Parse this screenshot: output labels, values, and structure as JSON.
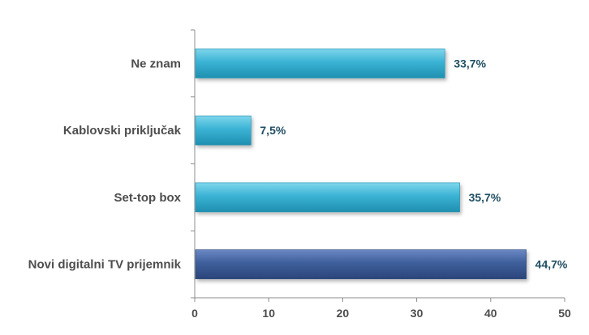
{
  "chart_data": {
    "type": "bar",
    "orientation": "horizontal",
    "categories": [
      "Ne znam",
      "Kablovski priključak",
      "Set-top box",
      "Novi digitalni TV prijemnik"
    ],
    "values": [
      33.7,
      7.5,
      35.7,
      44.7
    ],
    "data_labels": [
      "33,7%",
      "7,5%",
      "35,7%",
      "44,7%"
    ],
    "xlim": [
      0,
      50
    ],
    "x_ticks": [
      0,
      10,
      20,
      30,
      40,
      50
    ],
    "title": "",
    "xlabel": "",
    "ylabel": "",
    "grid": false,
    "legend": "none",
    "colors": {
      "default_bar": "#3bb3d4",
      "default_bar_light": "#7fd6ec",
      "default_bar_dark": "#1f8fb0",
      "highlight_bar": "#3f5f9c",
      "highlight_bar_light": "#6a88c4",
      "highlight_bar_dark": "#2b467a",
      "highlight_category": "Novi digitalni TV prijemnik"
    }
  }
}
